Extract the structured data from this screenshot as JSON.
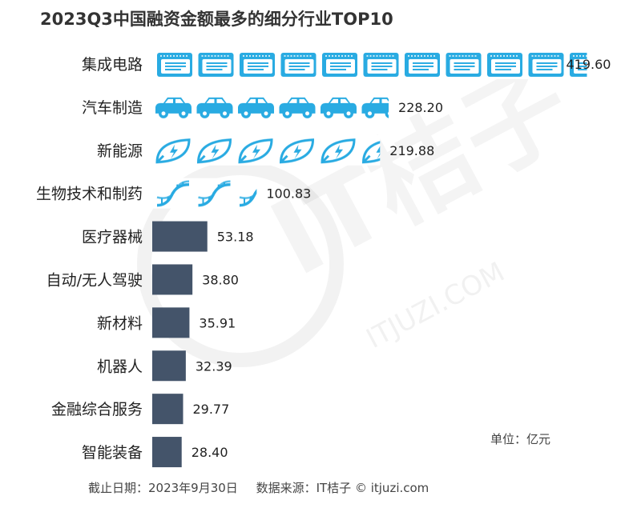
{
  "title": "2023Q3中国融资金额最多的细分行业TOP10",
  "unit_label": "单位：亿元",
  "footer": {
    "date": "截止日期：2023年9月30日",
    "source": "数据来源：IT桔子 © itjuzi.com"
  },
  "watermark": {
    "brand": "IT桔子",
    "url": "ITJUZI.COM"
  },
  "colors": {
    "icon_fill": "#29abe2",
    "bar_fill": "#44546a",
    "text": "#222222"
  },
  "chart_data": {
    "type": "bar",
    "orientation": "horizontal",
    "title": "2023Q3中国融资金额最多的细分行业TOP10",
    "xlabel": "",
    "ylabel": "",
    "unit": "亿元",
    "categories": [
      "集成电路",
      "汽车制造",
      "新能源",
      "生物技术和制药",
      "医疗器械",
      "自动/无人驾驶",
      "新材料",
      "机器人",
      "金融综合服务",
      "智能装备"
    ],
    "values": [
      419.6,
      228.2,
      219.88,
      100.83,
      53.18,
      38.8,
      35.91,
      32.39,
      29.77,
      28.4
    ],
    "value_labels": [
      "419.60",
      "228.20",
      "219.88",
      "100.83",
      "53.18",
      "38.80",
      "35.91",
      "32.39",
      "29.77",
      "28.40"
    ],
    "bar_styles": [
      "chip-icon",
      "car-icon",
      "leaf-icon",
      "dna-icon",
      "solid",
      "solid",
      "solid",
      "solid",
      "solid",
      "solid"
    ],
    "xlim": [
      0,
      420
    ],
    "grid": false,
    "legend": "none"
  }
}
